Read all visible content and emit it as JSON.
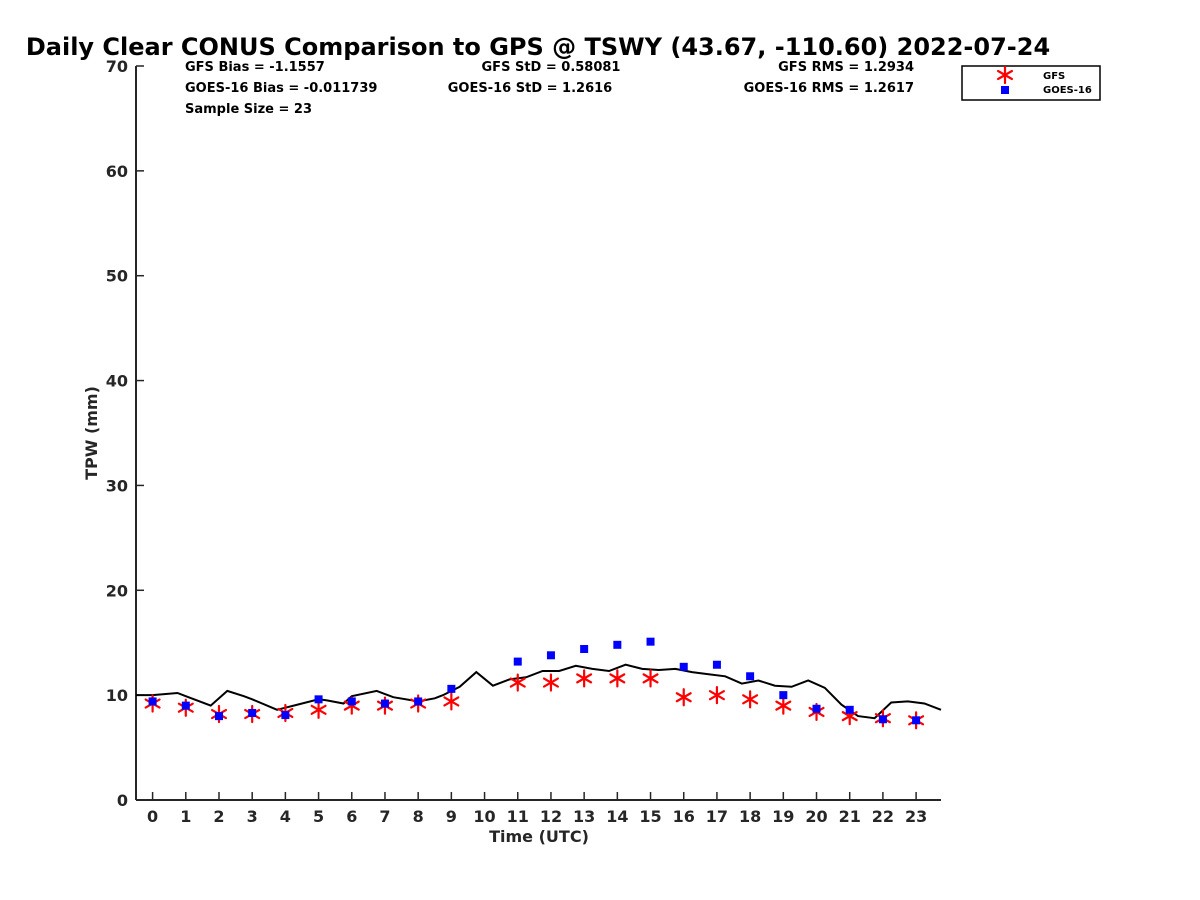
{
  "chart_data": {
    "type": "scatter",
    "title": "Daily Clear CONUS Comparison to GPS @ TSWY (43.67, -110.60) 2022-07-24",
    "xlabel": "Time (UTC)",
    "ylabel": "TPW (mm)",
    "xlim": [
      -0.5,
      23.75
    ],
    "ylim": [
      0,
      70
    ],
    "x_ticks": [
      0,
      1,
      2,
      3,
      4,
      5,
      6,
      7,
      8,
      9,
      10,
      11,
      12,
      13,
      14,
      15,
      16,
      17,
      18,
      19,
      20,
      21,
      22,
      23
    ],
    "y_ticks": [
      0,
      10,
      20,
      30,
      40,
      50,
      60,
      70
    ],
    "grid": false,
    "legend_position": "top-right",
    "stats": {
      "gfs_bias": "GFS Bias = -1.1557",
      "gfs_std": "GFS StD = 0.58081",
      "gfs_rms": "GFS RMS = 1.2934",
      "goes_bias": "GOES-16 Bias = -0.011739",
      "goes_std": "GOES-16 StD = 1.2616",
      "goes_rms": "GOES-16 RMS = 1.2617",
      "sample_size": "Sample Size = 23"
    },
    "series": [
      {
        "name": "GFS",
        "marker": "asterisk",
        "color": "#ff0000",
        "x": [
          0,
          1,
          2,
          3,
          4,
          5,
          6,
          7,
          8,
          9,
          11,
          12,
          13,
          14,
          15,
          16,
          17,
          18,
          19,
          20,
          21,
          22,
          23
        ],
        "values": [
          9.2,
          8.8,
          8.2,
          8.2,
          8.3,
          8.6,
          9.0,
          9.0,
          9.2,
          9.4,
          11.2,
          11.2,
          11.6,
          11.6,
          11.6,
          9.8,
          10.0,
          9.6,
          9.0,
          8.4,
          8.0,
          7.8,
          7.6
        ]
      },
      {
        "name": "GOES-16",
        "marker": "square",
        "color": "#0000ff",
        "x": [
          0,
          1,
          2,
          3,
          4,
          5,
          6,
          7,
          8,
          9,
          11,
          12,
          13,
          14,
          15,
          16,
          17,
          18,
          19,
          20,
          21,
          22,
          23
        ],
        "values": [
          9.4,
          9.0,
          8.0,
          8.3,
          8.1,
          9.6,
          9.4,
          9.2,
          9.4,
          10.6,
          13.2,
          13.8,
          14.4,
          14.8,
          15.1,
          12.7,
          12.9,
          11.8,
          10.0,
          8.7,
          8.6,
          7.7,
          7.6
        ]
      },
      {
        "marker": "line",
        "color": "#000000",
        "x": [
          -0.5,
          0,
          0.75,
          1,
          1.75,
          2.25,
          2.75,
          3,
          3.75,
          4,
          4.25,
          5,
          5.25,
          5.75,
          6,
          6.75,
          7.25,
          8,
          8.5,
          8.75,
          9.25,
          9.75,
          10.25,
          10.75,
          11.25,
          11.75,
          12.25,
          12.75,
          13.25,
          13.75,
          14.25,
          14.75,
          15.25,
          15.75,
          16.25,
          16.75,
          17.25,
          17.75,
          18.25,
          18.75,
          19.25,
          19.75,
          20.25,
          20.75,
          21.25,
          21.75,
          22.25,
          22.75,
          23.25,
          23.75
        ],
        "values": [
          10.0,
          10.0,
          10.2,
          9.9,
          9.0,
          10.4,
          9.9,
          9.6,
          8.6,
          8.8,
          9.0,
          9.6,
          9.5,
          9.2,
          9.9,
          10.4,
          9.8,
          9.4,
          9.7,
          10.0,
          10.8,
          12.2,
          10.9,
          11.5,
          11.7,
          12.3,
          12.3,
          12.8,
          12.5,
          12.3,
          12.9,
          12.5,
          12.4,
          12.5,
          12.2,
          12.0,
          11.8,
          11.1,
          11.4,
          10.9,
          10.8,
          11.4,
          10.7,
          9.1,
          8.0,
          7.8,
          9.3,
          9.4,
          9.2,
          8.6
        ]
      }
    ]
  }
}
